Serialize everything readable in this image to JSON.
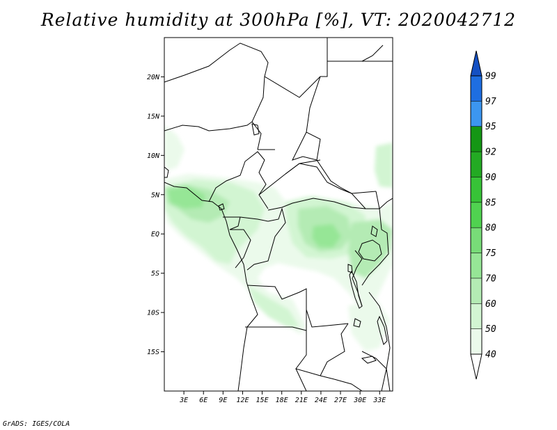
{
  "title": "Relative humidity at 300hPa [%], VT: 2020042712",
  "credit": "GrADS: IGES/COLA",
  "map": {
    "variable": "Relative humidity",
    "level": "300hPa",
    "units": "%",
    "valid_time": "2020042712",
    "lon_range": [
      0,
      35
    ],
    "lat_range": [
      -20,
      25
    ],
    "lat_ticks": [
      {
        "value": 20,
        "label": "20N"
      },
      {
        "value": 15,
        "label": "15N"
      },
      {
        "value": 10,
        "label": "10N"
      },
      {
        "value": 5,
        "label": "5N"
      },
      {
        "value": 0,
        "label": "EQ"
      },
      {
        "value": -5,
        "label": "5S"
      },
      {
        "value": -10,
        "label": "10S"
      },
      {
        "value": -15,
        "label": "15S"
      }
    ],
    "lon_ticks": [
      {
        "value": 3,
        "label": "3E"
      },
      {
        "value": 6,
        "label": "6E"
      },
      {
        "value": 9,
        "label": "9E"
      },
      {
        "value": 12,
        "label": "12E"
      },
      {
        "value": 15,
        "label": "15E"
      },
      {
        "value": 18,
        "label": "18E"
      },
      {
        "value": 21,
        "label": "21E"
      },
      {
        "value": 24,
        "label": "24E"
      },
      {
        "value": 27,
        "label": "27E"
      },
      {
        "value": 30,
        "label": "30E"
      },
      {
        "value": 33,
        "label": "33E"
      }
    ]
  },
  "colorbar": {
    "levels": [
      {
        "label": "40",
        "color": "#ebfaeb"
      },
      {
        "label": "50",
        "color": "#d2f5d2"
      },
      {
        "label": "60",
        "color": "#b4ebb4"
      },
      {
        "label": "70",
        "color": "#96e696"
      },
      {
        "label": "75",
        "color": "#78dc78"
      },
      {
        "label": "80",
        "color": "#50d250"
      },
      {
        "label": "85",
        "color": "#37c337"
      },
      {
        "label": "90",
        "color": "#23aa23"
      },
      {
        "label": "92",
        "color": "#149614"
      },
      {
        "label": "95",
        "color": "#3c96f0"
      },
      {
        "label": "97",
        "color": "#1e6ee1"
      },
      {
        "label": "99",
        "color": "#1450c3"
      }
    ],
    "low_end_color": "#ffffff",
    "colors": {
      "boundary": "#000000",
      "frame": "#000000"
    }
  }
}
